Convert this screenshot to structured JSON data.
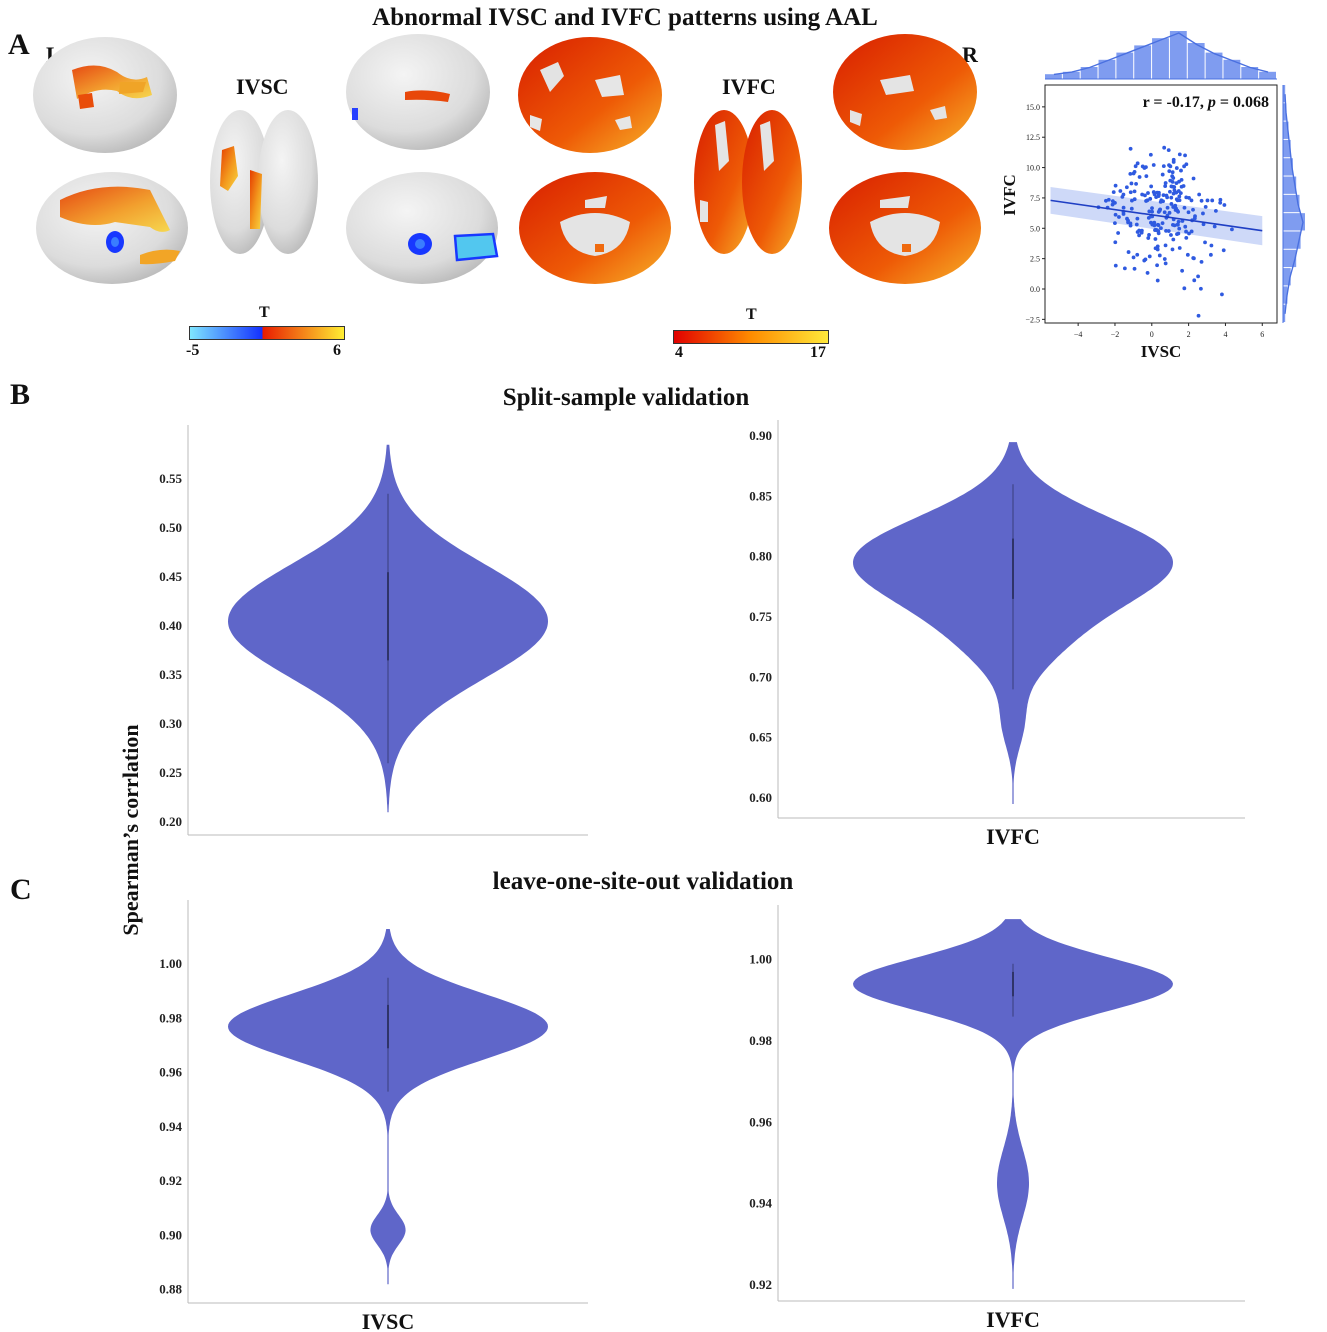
{
  "panel_a": {
    "letter": "A",
    "title": "Abnormal IVSC and IVFC patterns using AAL",
    "left_hemi": "L",
    "right_hemi": "R",
    "ivsc_label": "IVSC",
    "ivfc_label": "IVFC",
    "colorbar_ivsc": {
      "title": "T",
      "min": "-5",
      "max": "6",
      "colors": [
        "#7fe6ff",
        "#1330ff",
        "#e81a00",
        "#ffee33"
      ]
    },
    "colorbar_ivfc": {
      "title": "T",
      "min": "4",
      "max": "17",
      "colors": [
        "#e00000",
        "#ff8c00",
        "#ffe83a"
      ]
    }
  },
  "panel_b": {
    "letter": "B",
    "title": "Split-sample validation"
  },
  "panel_c": {
    "letter": "C",
    "title": "leave-one-site-out validation"
  },
  "shared_ylabel": "Spearman’s corrlation",
  "violin_color": "#5f66c9",
  "chart_data": [
    {
      "type": "scatter",
      "id": "ivsc-vs-ivfc",
      "annotation": {
        "r": "r = -0.17, ",
        "p_label": "p",
        "p_value": " = 0.068"
      },
      "xlabel": "IVSC",
      "ylabel": "IVFC",
      "xlim": [
        -5.8,
        6.8
      ],
      "ylim": [
        -2.8,
        16.8
      ],
      "xticks": [
        -4,
        -2,
        0,
        2,
        4,
        6
      ],
      "yticks": [
        -2.5,
        0.0,
        2.5,
        5.0,
        7.5,
        10.0,
        12.5,
        15.0
      ],
      "ytick_labels": [
        "−2.5",
        "0.0",
        "2.5",
        "5.0",
        "7.5",
        "10.0",
        "12.5",
        "15.0"
      ],
      "xtick_labels": [
        "−4",
        "−2",
        "0",
        "2",
        "4",
        "6"
      ],
      "regression": {
        "x": [
          -5.5,
          6.0
        ],
        "y": [
          7.3,
          4.8
        ]
      },
      "marginal_x_hist": [
        2,
        3,
        5,
        8,
        11,
        14,
        17,
        20,
        15,
        11,
        8,
        5,
        3
      ],
      "marginal_y_hist": [
        2,
        4,
        7,
        12,
        16,
        20,
        15,
        12,
        9,
        7,
        5,
        3,
        2
      ]
    },
    {
      "type": "violin",
      "id": "split-ivsc",
      "category": "IVSC",
      "ylim": [
        0.195,
        0.595
      ],
      "yticks": [
        0.2,
        0.25,
        0.3,
        0.35,
        0.4,
        0.45,
        0.5,
        0.55
      ],
      "ytick_labels": [
        "0.20",
        "0.25",
        "0.30",
        "0.35",
        "0.40",
        "0.45",
        "0.50",
        "0.55"
      ],
      "y_min": 0.21,
      "y_max": 0.585,
      "inner_low": 0.26,
      "inner_high": 0.535,
      "inner_q1": 0.365,
      "inner_q3": 0.455,
      "components": [
        {
          "mu": 0.405,
          "sd": 0.058,
          "w": 1.0
        }
      ]
    },
    {
      "type": "violin",
      "id": "split-ivfc",
      "category": "IVFC",
      "ylim": [
        0.59,
        0.905
      ],
      "yticks": [
        0.6,
        0.65,
        0.7,
        0.75,
        0.8,
        0.85,
        0.9
      ],
      "ytick_labels": [
        "0.60",
        "0.65",
        "0.70",
        "0.75",
        "0.80",
        "0.85",
        "0.90"
      ],
      "y_min": 0.595,
      "y_max": 0.895,
      "inner_low": 0.69,
      "inner_high": 0.86,
      "inner_q1": 0.765,
      "inner_q3": 0.815,
      "components": [
        {
          "mu": 0.797,
          "sd": 0.036,
          "w": 1.0
        },
        {
          "mu": 0.73,
          "sd": 0.03,
          "w": 0.22
        },
        {
          "mu": 0.66,
          "sd": 0.02,
          "w": 0.06
        }
      ]
    },
    {
      "type": "violin",
      "id": "loso-ivsc",
      "category": "IVSC",
      "ylim": [
        0.878,
        1.02
      ],
      "yticks": [
        0.88,
        0.9,
        0.92,
        0.94,
        0.96,
        0.98,
        1.0
      ],
      "ytick_labels": [
        "0.88",
        "0.90",
        "0.92",
        "0.94",
        "0.96",
        "0.98",
        "1.00"
      ],
      "y_min": 0.882,
      "y_max": 1.013,
      "inner_low": 0.953,
      "inner_high": 0.995,
      "inner_q1": 0.969,
      "inner_q3": 0.985,
      "components": [
        {
          "mu": 0.977,
          "sd": 0.012,
          "w": 1.0
        },
        {
          "mu": 0.902,
          "sd": 0.0055,
          "w": 0.11
        }
      ]
    },
    {
      "type": "violin",
      "id": "loso-ivfc",
      "category": "IVFC",
      "ylim": [
        0.918,
        1.011
      ],
      "yticks": [
        0.92,
        0.94,
        0.96,
        0.98,
        1.0
      ],
      "ytick_labels": [
        "0.92",
        "0.94",
        "0.96",
        "0.98",
        "1.00"
      ],
      "y_min": 0.919,
      "y_max": 1.01,
      "inner_low": 0.986,
      "inner_high": 0.999,
      "inner_q1": 0.991,
      "inner_q3": 0.997,
      "components": [
        {
          "mu": 0.994,
          "sd": 0.0065,
          "w": 1.0
        },
        {
          "mu": 0.945,
          "sd": 0.0085,
          "w": 0.1
        }
      ]
    }
  ]
}
